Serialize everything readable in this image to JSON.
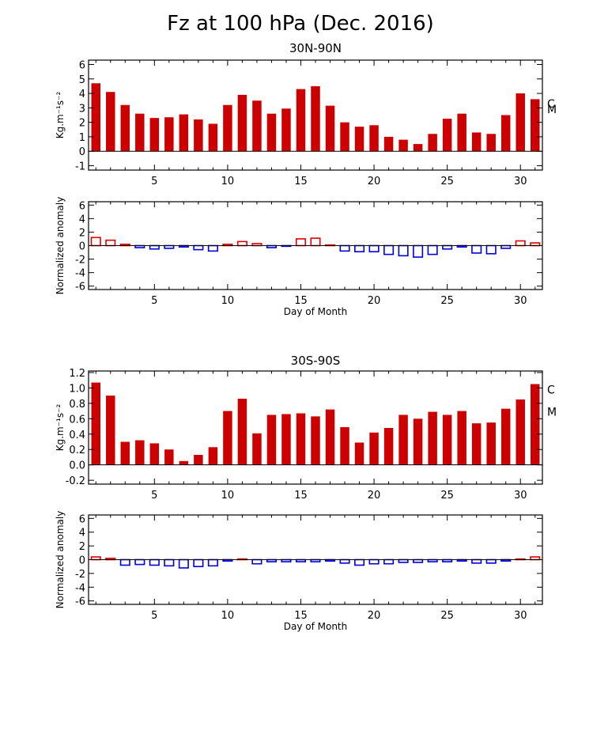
{
  "title": "Fz at 100 hPa (Dec. 2016)",
  "colors": {
    "bar_fill": "#cc0000",
    "positive_anomaly": "#dd0000",
    "negative_anomaly": "#0000dd",
    "axis": "#000000"
  },
  "chart_data": [
    {
      "id": "nh-flux",
      "type": "bar",
      "title": "30N-90N",
      "xlabel": "",
      "ylabel": "Kg.m⁻¹s⁻²",
      "ylim": [
        -1.3,
        6.3
      ],
      "yticks": [
        -1,
        0,
        1,
        2,
        3,
        4,
        5,
        6
      ],
      "xlim": [
        0.5,
        31.5
      ],
      "xticks": [
        5,
        10,
        15,
        20,
        25,
        30
      ],
      "x": [
        1,
        2,
        3,
        4,
        5,
        6,
        7,
        8,
        9,
        10,
        11,
        12,
        13,
        14,
        15,
        16,
        17,
        18,
        19,
        20,
        21,
        22,
        23,
        24,
        25,
        26,
        27,
        28,
        29,
        30,
        31
      ],
      "values": [
        4.7,
        4.1,
        3.2,
        2.6,
        2.3,
        2.35,
        2.55,
        2.2,
        1.9,
        3.2,
        3.9,
        3.5,
        2.6,
        2.95,
        4.3,
        4.5,
        3.15,
        2.0,
        1.7,
        1.8,
        1.0,
        0.8,
        0.5,
        1.2,
        2.25,
        2.6,
        1.3,
        1.2,
        2.5,
        4.0,
        3.6
      ],
      "markers": [
        {
          "label": "C",
          "value": 3.3
        },
        {
          "label": "M",
          "value": 2.9
        }
      ],
      "grid": false
    },
    {
      "id": "nh-anomaly",
      "type": "bar",
      "title": "",
      "xlabel": "Day of Month",
      "ylabel": "Normalized anomaly",
      "ylim": [
        -6.5,
        6.5
      ],
      "yticks": [
        -6,
        -4,
        -2,
        0,
        2,
        4,
        6
      ],
      "xlim": [
        0.5,
        31.5
      ],
      "xticks": [
        5,
        10,
        15,
        20,
        25,
        30
      ],
      "x": [
        1,
        2,
        3,
        4,
        5,
        6,
        7,
        8,
        9,
        10,
        11,
        12,
        13,
        14,
        15,
        16,
        17,
        18,
        19,
        20,
        21,
        22,
        23,
        24,
        25,
        26,
        27,
        28,
        29,
        30,
        31
      ],
      "values": [
        1.2,
        0.8,
        0.2,
        -0.3,
        -0.5,
        -0.4,
        -0.2,
        -0.6,
        -0.8,
        0.2,
        0.6,
        0.3,
        -0.3,
        -0.1,
        1.0,
        1.1,
        0.1,
        -0.8,
        -0.9,
        -0.9,
        -1.3,
        -1.5,
        -1.7,
        -1.3,
        -0.5,
        -0.2,
        -1.1,
        -1.2,
        -0.4,
        0.7,
        0.4
      ],
      "style": "outline",
      "grid": false
    },
    {
      "id": "sh-flux",
      "type": "bar",
      "title": "30S-90S",
      "xlabel": "",
      "ylabel": "Kg.m⁻¹s⁻²",
      "ylim": [
        -0.25,
        1.22
      ],
      "yticks": [
        -0.2,
        0.0,
        0.2,
        0.4,
        0.6,
        0.8,
        1.0,
        1.2
      ],
      "ytick_labels": [
        "-0.2",
        "0.0",
        "0.2",
        "0.4",
        "0.6",
        "0.8",
        "1.0",
        "1.2"
      ],
      "xlim": [
        0.5,
        31.5
      ],
      "xticks": [
        5,
        10,
        15,
        20,
        25,
        30
      ],
      "x": [
        1,
        2,
        3,
        4,
        5,
        6,
        7,
        8,
        9,
        10,
        11,
        12,
        13,
        14,
        15,
        16,
        17,
        18,
        19,
        20,
        21,
        22,
        23,
        24,
        25,
        26,
        27,
        28,
        29,
        30,
        31
      ],
      "values": [
        1.07,
        0.9,
        0.3,
        0.32,
        0.28,
        0.2,
        0.05,
        0.13,
        0.23,
        0.7,
        0.86,
        0.41,
        0.65,
        0.66,
        0.67,
        0.63,
        0.72,
        0.49,
        0.29,
        0.42,
        0.48,
        0.65,
        0.6,
        0.69,
        0.65,
        0.7,
        0.54,
        0.55,
        0.73,
        0.85,
        1.05
      ],
      "markers": [
        {
          "label": "C",
          "value": 0.98
        },
        {
          "label": "M",
          "value": 0.69
        }
      ],
      "grid": false
    },
    {
      "id": "sh-anomaly",
      "type": "bar",
      "title": "",
      "xlabel": "Day of Month",
      "ylabel": "Normalized anomaly",
      "ylim": [
        -6.5,
        6.5
      ],
      "yticks": [
        -6,
        -4,
        -2,
        0,
        2,
        4,
        6
      ],
      "xlim": [
        0.5,
        31.5
      ],
      "xticks": [
        5,
        10,
        15,
        20,
        25,
        30
      ],
      "x": [
        1,
        2,
        3,
        4,
        5,
        6,
        7,
        8,
        9,
        10,
        11,
        12,
        13,
        14,
        15,
        16,
        17,
        18,
        19,
        20,
        21,
        22,
        23,
        24,
        25,
        26,
        27,
        28,
        29,
        30,
        31
      ],
      "values": [
        0.4,
        0.2,
        -0.8,
        -0.7,
        -0.8,
        -0.9,
        -1.2,
        -1.0,
        -0.9,
        -0.2,
        0.1,
        -0.6,
        -0.3,
        -0.3,
        -0.3,
        -0.3,
        -0.2,
        -0.5,
        -0.8,
        -0.6,
        -0.6,
        -0.4,
        -0.4,
        -0.3,
        -0.3,
        -0.2,
        -0.5,
        -0.5,
        -0.2,
        0.1,
        0.4
      ],
      "style": "outline",
      "grid": false
    }
  ]
}
